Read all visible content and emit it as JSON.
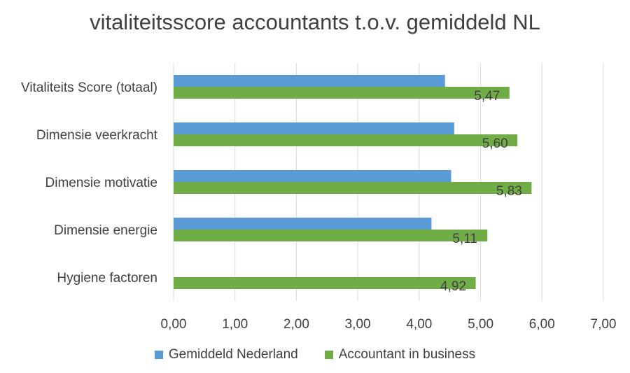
{
  "chart_data": {
    "type": "bar",
    "orientation": "horizontal",
    "title": "vitaliteitsscore accountants t.o.v. gemiddeld NL",
    "categories": [
      "Vitaliteits Score (totaal)",
      "Dimensie veerkracht",
      "Dimensie motivatie",
      "Dimensie energie",
      "Hygiene factoren"
    ],
    "series": [
      {
        "name": "Gemiddeld Nederland",
        "color": "#5B9BD5",
        "values": [
          4.42,
          4.57,
          4.52,
          4.2,
          null
        ]
      },
      {
        "name": "Accountant in business",
        "color": "#70AD47",
        "values": [
          5.47,
          5.6,
          5.83,
          5.11,
          4.92
        ],
        "data_labels": [
          "5,47",
          "5,60",
          "5,83",
          "5,11",
          "4,92"
        ]
      }
    ],
    "xlim": [
      0,
      7
    ],
    "x_ticks": [
      "0,00",
      "1,00",
      "2,00",
      "3,00",
      "4,00",
      "5,00",
      "6,00",
      "7,00"
    ],
    "grid": true,
    "legend_position": "bottom"
  }
}
